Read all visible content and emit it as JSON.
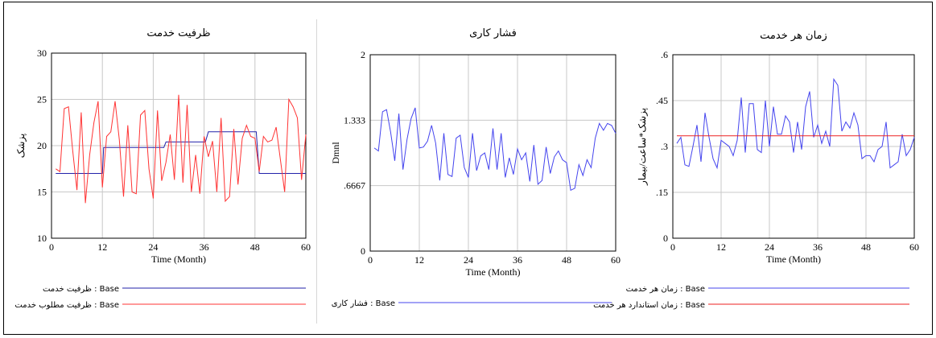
{
  "chart_data": [
    {
      "type": "line",
      "title": "ظرفیت خدمت",
      "xlabel": "Time (Month)",
      "ylabel": "پزشک",
      "xlim": [
        0,
        60
      ],
      "ylim": [
        10,
        30
      ],
      "x_ticks": [
        "0",
        "12",
        "24",
        "36",
        "48",
        "60"
      ],
      "y_ticks": [
        "10",
        "15",
        "20",
        "25",
        "30"
      ],
      "grid": true,
      "legend_position": "bottom",
      "series": [
        {
          "name": "ظرفیت خدمت : Base",
          "color": "#2222aa",
          "x": [
            1,
            12,
            12.3,
            26.5,
            27,
            36.3,
            37,
            48.3,
            49,
            60
          ],
          "y": [
            17,
            17,
            19.8,
            19.8,
            20.4,
            20.4,
            21.5,
            21.5,
            17,
            17
          ]
        },
        {
          "name": "ظرفیت مطلوب خدمت : Base",
          "color": "#ff3333",
          "x": [
            1,
            2,
            3,
            4,
            5,
            6,
            7,
            8,
            9,
            10,
            11,
            12,
            13,
            14,
            15,
            16,
            17,
            18,
            19,
            20,
            21,
            22,
            23,
            24,
            25,
            26,
            27,
            28,
            29,
            30,
            31,
            32,
            33,
            34,
            35,
            36,
            37,
            38,
            39,
            40,
            41,
            42,
            43,
            44,
            45,
            46,
            47,
            48,
            49,
            50,
            51,
            52,
            53,
            54,
            55,
            56,
            57,
            58,
            59,
            60
          ],
          "y": [
            17.5,
            17.2,
            24,
            24.2,
            19.5,
            15.2,
            23.6,
            13.8,
            19,
            22.5,
            24.8,
            15.5,
            21,
            21.5,
            24.8,
            20.6,
            14.5,
            22.2,
            15,
            14.8,
            23.3,
            23.8,
            17.5,
            14.3,
            23.8,
            16.2,
            18.2,
            21.2,
            16.3,
            25.5,
            16,
            24.4,
            15,
            19,
            14.8,
            21,
            18.8,
            20.5,
            15,
            23,
            14,
            14.5,
            21.8,
            15.8,
            20.8,
            22.2,
            21,
            20.8,
            17.2,
            21,
            20.4,
            20.6,
            22,
            18.5,
            15,
            25,
            24.2,
            23,
            16.3,
            21.2
          ]
        }
      ]
    },
    {
      "type": "line",
      "title": "فشار کاری",
      "xlabel": "Time (Month)",
      "ylabel": "Dmnl",
      "xlim": [
        0,
        60
      ],
      "ylim": [
        0,
        2
      ],
      "x_ticks": [
        "0",
        "12",
        "24",
        "36",
        "48",
        "60"
      ],
      "y_ticks": [
        "0",
        ".6667",
        "1.333",
        "2"
      ],
      "grid": true,
      "legend_position": "bottom",
      "series": [
        {
          "name": "فشار کاری : Base",
          "color": "#4444ee",
          "x": [
            1,
            2,
            3,
            4,
            5,
            6,
            7,
            8,
            9,
            10,
            11,
            12,
            13,
            14,
            15,
            16,
            17,
            18,
            19,
            20,
            21,
            22,
            23,
            24,
            25,
            26,
            27,
            28,
            29,
            30,
            31,
            32,
            33,
            34,
            35,
            36,
            37,
            38,
            39,
            40,
            41,
            42,
            43,
            44,
            45,
            46,
            47,
            48,
            49,
            50,
            51,
            52,
            53,
            54,
            55,
            56,
            57,
            58,
            59,
            60
          ],
          "y": [
            1.05,
            1.02,
            1.42,
            1.44,
            1.21,
            0.92,
            1.4,
            0.83,
            1.14,
            1.35,
            1.46,
            1.05,
            1.06,
            1.12,
            1.28,
            1.1,
            0.72,
            1.2,
            0.78,
            0.76,
            1.15,
            1.18,
            0.85,
            0.75,
            1.2,
            0.82,
            0.97,
            1.0,
            0.83,
            1.25,
            0.83,
            1.2,
            0.75,
            0.95,
            0.78,
            1.04,
            0.93,
            1.0,
            0.71,
            1.08,
            0.68,
            0.72,
            1.06,
            0.79,
            0.96,
            1.02,
            0.93,
            0.9,
            0.62,
            0.64,
            0.88,
            0.77,
            0.93,
            0.85,
            1.15,
            1.3,
            1.23,
            1.3,
            1.28,
            1.2
          ]
        }
      ]
    },
    {
      "type": "line",
      "title": "زمان هر خدمت",
      "xlabel": "Time (Month)",
      "ylabel": "پزشک*ساعت/بیمار",
      "xlim": [
        0,
        60
      ],
      "ylim": [
        0,
        0.6
      ],
      "x_ticks": [
        "0",
        "12",
        "24",
        "36",
        "48",
        "60"
      ],
      "y_ticks": [
        "0",
        ".15",
        ".3",
        ".45",
        ".6"
      ],
      "grid": true,
      "legend_position": "bottom",
      "series": [
        {
          "name": "زمان هر خدمت : Base",
          "color": "#4444ee",
          "x": [
            1,
            2,
            3,
            4,
            5,
            6,
            7,
            8,
            9,
            10,
            11,
            12,
            13,
            14,
            15,
            16,
            17,
            18,
            19,
            20,
            21,
            22,
            23,
            24,
            25,
            26,
            27,
            28,
            29,
            30,
            31,
            32,
            33,
            34,
            35,
            36,
            37,
            38,
            39,
            40,
            41,
            42,
            43,
            44,
            45,
            46,
            47,
            48,
            49,
            50,
            51,
            52,
            53,
            54,
            55,
            56,
            57,
            58,
            59,
            60
          ],
          "y": [
            0.31,
            0.33,
            0.24,
            0.235,
            0.3,
            0.37,
            0.25,
            0.41,
            0.33,
            0.26,
            0.23,
            0.32,
            0.31,
            0.3,
            0.27,
            0.32,
            0.46,
            0.28,
            0.44,
            0.44,
            0.29,
            0.28,
            0.45,
            0.3,
            0.43,
            0.34,
            0.34,
            0.4,
            0.38,
            0.28,
            0.38,
            0.29,
            0.43,
            0.48,
            0.33,
            0.37,
            0.31,
            0.35,
            0.3,
            0.52,
            0.5,
            0.35,
            0.38,
            0.36,
            0.41,
            0.37,
            0.26,
            0.27,
            0.27,
            0.25,
            0.29,
            0.3,
            0.38,
            0.23,
            0.24,
            0.25,
            0.34,
            0.27,
            0.29,
            0.33
          ]
        },
        {
          "name": "زمان استاندارد هر خدمت : Base",
          "color": "#ee2222",
          "x": [
            1,
            60
          ],
          "y": [
            0.335,
            0.335
          ]
        }
      ]
    }
  ]
}
